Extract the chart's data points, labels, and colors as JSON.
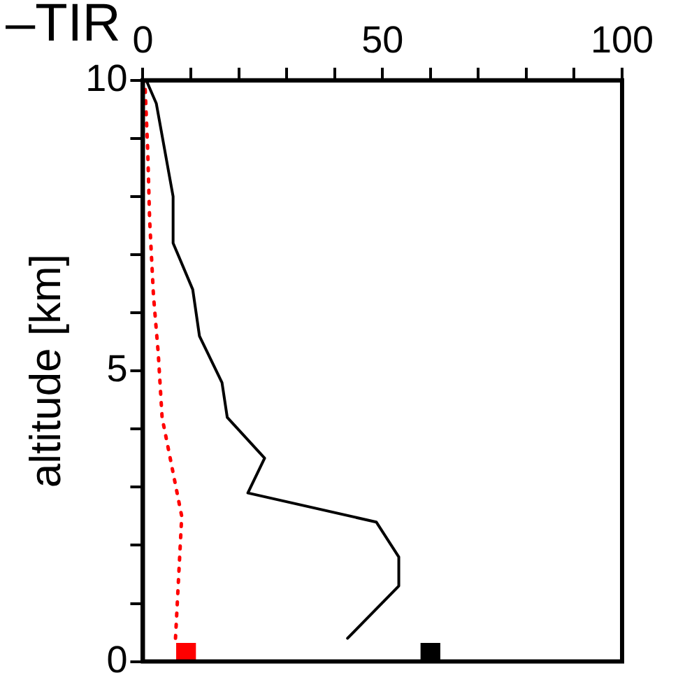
{
  "chart_data": {
    "type": "line",
    "title": "–TIR",
    "ylabel": "altitude [km]",
    "xlim": [
      0,
      100
    ],
    "xticks": [
      0,
      {
        "value": 10,
        "label": null
      },
      {
        "value": 20,
        "label": null
      },
      {
        "value": 30,
        "label": null
      },
      {
        "value": 40,
        "label": null
      },
      50,
      {
        "value": 60,
        "label": null
      },
      {
        "value": 70,
        "label": null
      },
      {
        "value": 80,
        "label": null
      },
      {
        "value": 90,
        "label": null
      },
      100
    ],
    "ylim": [
      0,
      10
    ],
    "yticks": [
      0,
      {
        "value": 1,
        "label": null
      },
      {
        "value": 2,
        "label": null
      },
      {
        "value": 3,
        "label": null
      },
      {
        "value": 4,
        "label": null
      },
      5,
      {
        "value": 6,
        "label": null
      },
      {
        "value": 7,
        "label": null
      },
      {
        "value": 8,
        "label": null
      },
      {
        "value": 9,
        "label": null
      },
      10
    ],
    "grid": false,
    "legend": false,
    "series": [
      {
        "color": "#000000",
        "line_style": "solid",
        "marker": "none",
        "x": [
          42.7,
          53.4,
          53.4,
          48.7,
          21.9,
          25.4,
          17.6,
          16.5,
          11.8,
          10.4,
          6.3,
          6.3,
          2.8,
          0.7
        ],
        "values": [
          0.4,
          1.3,
          1.8,
          2.4,
          2.9,
          3.5,
          4.2,
          4.8,
          5.6,
          6.4,
          7.2,
          8.0,
          9.6,
          10
        ]
      },
      {
        "color": "#ff0000",
        "line_style": "dotted",
        "marker": "none",
        "x": [
          6.8,
          8.1,
          4,
          3.2,
          2.2,
          1.4,
          1,
          0.4
        ],
        "values": [
          0.4,
          2.5,
          4.2,
          5.3,
          6.3,
          7.6,
          8.8,
          10
        ]
      },
      {
        "type": "scatter",
        "marker": "square",
        "colors": [
          "#ff0000",
          "#000000"
        ],
        "x": [
          9,
          60
        ],
        "values": [
          0.15,
          0.15
        ]
      }
    ]
  }
}
